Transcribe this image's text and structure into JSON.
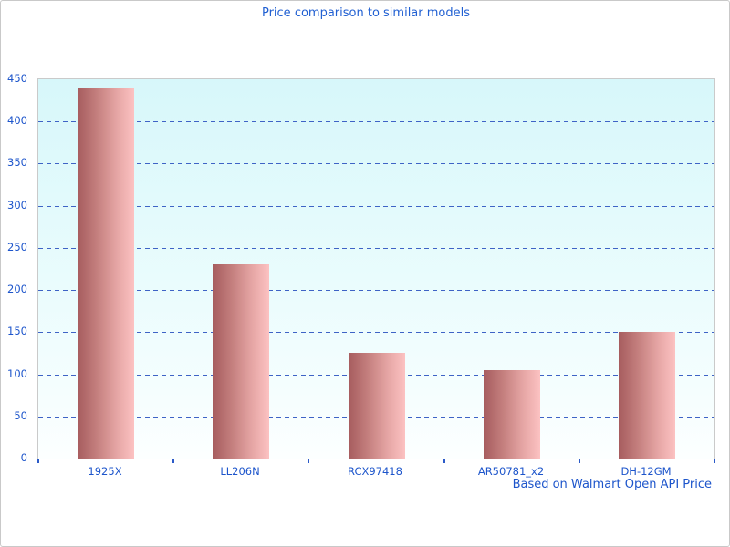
{
  "title": "Price comparison to similar models",
  "footer": "Based on Walmart Open API Price",
  "colors": {
    "text_blue": "#1d55cb",
    "title_blue": "#2160d2",
    "grid_blue": "#3e63c6",
    "bar_gradient_start": "#a65c5e",
    "bar_gradient_end": "#fcc2c2",
    "plot_bg_top": "#d7f7fa",
    "plot_bg_bottom": "#fcffff",
    "plot_border": "#cacaca",
    "page_border": "#c9c9c9"
  },
  "chart_data": {
    "type": "bar",
    "title": "Price comparison to similar models",
    "categories": [
      "1925X",
      "LL206N",
      "RCX97418",
      "AR50781_x2",
      "DH-12GM"
    ],
    "values": [
      440,
      230,
      125,
      105,
      150
    ],
    "xlabel": "",
    "ylabel": "",
    "ylim": [
      0,
      450
    ],
    "ytick_interval": 50,
    "ytick_labels": [
      "0",
      "50",
      "100",
      "150",
      "200",
      "250",
      "300",
      "350",
      "400",
      "450"
    ],
    "grid": "horizontal-dashed",
    "legend": "none",
    "annotation": "Based on Walmart Open API Price"
  }
}
